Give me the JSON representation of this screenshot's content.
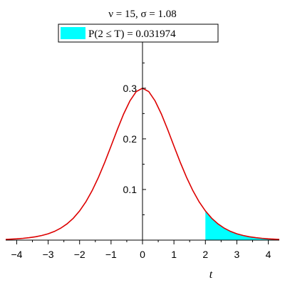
{
  "chart_data": {
    "type": "area",
    "title": "ν = 15, σ = 1.08",
    "xlabel": "t",
    "ylabel": "",
    "xlim": [
      -4.35,
      4.35
    ],
    "ylim": [
      0,
      0.38
    ],
    "x_ticks": [
      -4,
      -3,
      -2,
      -1,
      0,
      1,
      2,
      3,
      4
    ],
    "x_tick_labels": [
      "−4",
      "−3",
      "−2",
      "−1",
      "0",
      "1",
      "2",
      "3",
      "4"
    ],
    "y_ticks": [
      0.1,
      0.2,
      0.3
    ],
    "y_tick_labels": [
      "0.1",
      "0.2",
      "0.3"
    ],
    "grid": false,
    "legend": {
      "placement": "top",
      "entries": [
        {
          "label": "P(2 ≤ T) = 0.031974",
          "color": "#00ffff"
        }
      ]
    },
    "series": [
      {
        "kind": "line",
        "color": "#dd0000",
        "x": [
          -4.35,
          -4.2,
          -4.0,
          -3.8,
          -3.6,
          -3.4,
          -3.2,
          -3.0,
          -2.8,
          -2.6,
          -2.4,
          -2.2,
          -2.0,
          -1.8,
          -1.6,
          -1.4,
          -1.2,
          -1.0,
          -0.8,
          -0.6,
          -0.4,
          -0.2,
          0.0,
          0.2,
          0.4,
          0.6,
          0.8,
          1.0,
          1.2,
          1.4,
          1.6,
          1.8,
          2.0,
          2.2,
          2.4,
          2.6,
          2.8,
          3.0,
          3.2,
          3.4,
          3.6,
          3.8,
          4.0,
          4.2,
          4.35
        ],
        "y": [
          0.0014,
          0.0018,
          0.0025,
          0.0035,
          0.0048,
          0.0066,
          0.0091,
          0.0125,
          0.0172,
          0.0236,
          0.0321,
          0.0432,
          0.0576,
          0.0757,
          0.0979,
          0.1241,
          0.1537,
          0.1858,
          0.2184,
          0.2491,
          0.275,
          0.2933,
          0.3,
          0.2933,
          0.275,
          0.2491,
          0.2184,
          0.1858,
          0.1537,
          0.1241,
          0.0979,
          0.0757,
          0.0576,
          0.0432,
          0.0321,
          0.0236,
          0.0172,
          0.0125,
          0.0091,
          0.0066,
          0.0048,
          0.0035,
          0.0025,
          0.0018,
          0.0014
        ]
      },
      {
        "kind": "shaded",
        "color": "#00ffff",
        "from": 2,
        "to": 4.35
      }
    ]
  }
}
